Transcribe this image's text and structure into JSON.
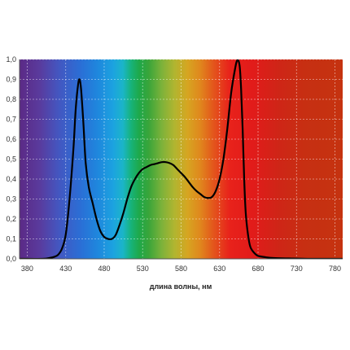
{
  "chart_data": {
    "type": "line",
    "title": "",
    "xlabel": "длина волны, нм",
    "ylabel": "",
    "xlim": [
      370,
      790
    ],
    "ylim": [
      0,
      1.0
    ],
    "grid": true,
    "background": "visible-spectrum gradient",
    "x_ticks": [
      380,
      430,
      480,
      530,
      580,
      630,
      680,
      730,
      780
    ],
    "x_tick_labels": [
      "380",
      "430",
      "480",
      "530",
      "580",
      "630",
      "680",
      "730",
      "780"
    ],
    "y_ticks": [
      0,
      0.1,
      0.2,
      0.3,
      0.4,
      0.5,
      0.6,
      0.7,
      0.8,
      0.9,
      1.0
    ],
    "y_tick_labels": [
      "0,0",
      "0,1",
      "0,2",
      "0,3",
      "0,4",
      "0,5",
      "0,6",
      "0,7",
      "0,8",
      "0,9",
      "1,0"
    ],
    "series": [
      {
        "color": "#000000",
        "x": [
          370,
          400,
          410,
          415,
          420,
          425,
          430,
          435,
          440,
          443,
          446,
          448,
          450,
          453,
          456,
          460,
          465,
          470,
          475,
          480,
          485,
          490,
          495,
          500,
          505,
          510,
          515,
          520,
          525,
          530,
          535,
          540,
          545,
          550,
          555,
          560,
          565,
          570,
          575,
          580,
          585,
          590,
          595,
          600,
          605,
          610,
          615,
          620,
          625,
          630,
          635,
          640,
          645,
          650,
          653,
          656,
          658,
          660,
          662,
          664,
          667,
          670,
          675,
          680,
          690,
          700,
          720,
          750,
          790
        ],
        "y": [
          0.0,
          0.0,
          0.005,
          0.01,
          0.02,
          0.05,
          0.12,
          0.3,
          0.55,
          0.75,
          0.87,
          0.9,
          0.85,
          0.68,
          0.48,
          0.36,
          0.28,
          0.2,
          0.14,
          0.11,
          0.1,
          0.1,
          0.12,
          0.17,
          0.23,
          0.3,
          0.36,
          0.4,
          0.43,
          0.45,
          0.46,
          0.47,
          0.475,
          0.48,
          0.485,
          0.485,
          0.48,
          0.47,
          0.45,
          0.43,
          0.41,
          0.385,
          0.36,
          0.34,
          0.325,
          0.31,
          0.305,
          0.31,
          0.34,
          0.4,
          0.5,
          0.65,
          0.83,
          0.95,
          0.995,
          0.97,
          0.85,
          0.65,
          0.4,
          0.23,
          0.12,
          0.06,
          0.03,
          0.015,
          0.008,
          0.004,
          0.002,
          0.0,
          0.0
        ]
      }
    ]
  }
}
